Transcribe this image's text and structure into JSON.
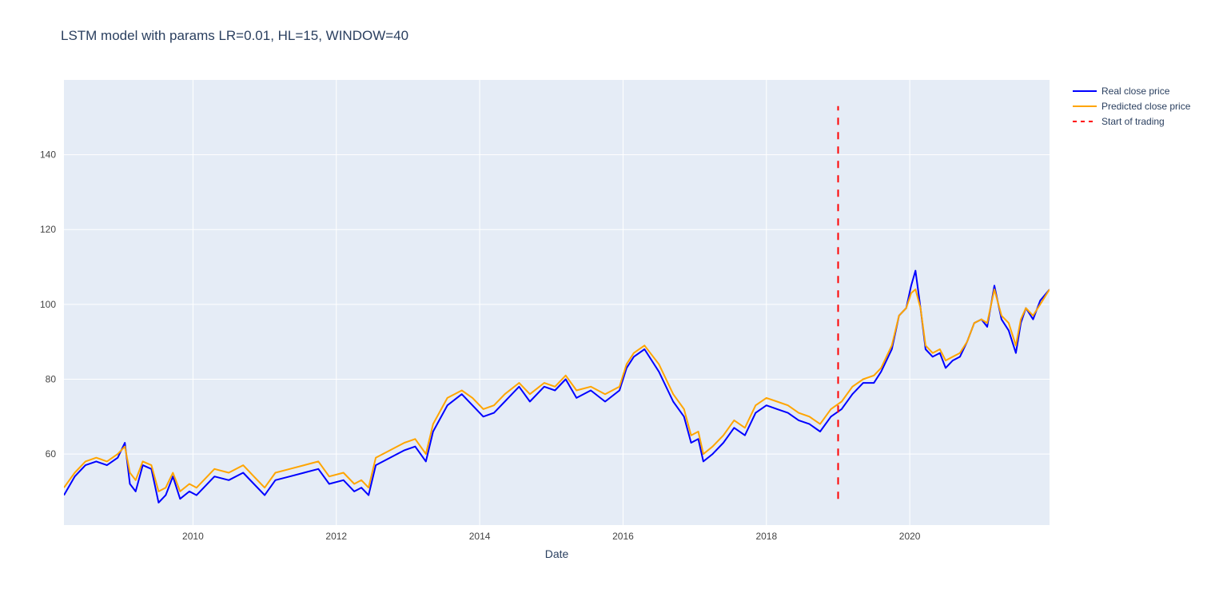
{
  "chart_data": {
    "type": "line",
    "title": "LSTM model with params LR=0.01, HL=15, WINDOW=40",
    "xlabel": "Date",
    "ylabel": "",
    "xlim": [
      2008.2,
      2021.95
    ],
    "ylim": [
      41,
      160
    ],
    "x_ticks": [
      2010,
      2012,
      2014,
      2016,
      2018,
      2020
    ],
    "y_ticks": [
      60,
      80,
      100,
      120,
      140
    ],
    "grid": true,
    "legend_position": "top-right",
    "series": [
      {
        "name": "Real close price",
        "color": "#0000ff",
        "points": [
          [
            2008.2,
            49
          ],
          [
            2008.35,
            54
          ],
          [
            2008.5,
            57
          ],
          [
            2008.65,
            58
          ],
          [
            2008.8,
            57
          ],
          [
            2008.95,
            59
          ],
          [
            2009.05,
            63
          ],
          [
            2009.12,
            52
          ],
          [
            2009.2,
            50
          ],
          [
            2009.3,
            57
          ],
          [
            2009.42,
            56
          ],
          [
            2009.52,
            47
          ],
          [
            2009.62,
            49
          ],
          [
            2009.72,
            54
          ],
          [
            2009.82,
            48
          ],
          [
            2009.95,
            50
          ],
          [
            2010.05,
            49
          ],
          [
            2010.15,
            51
          ],
          [
            2010.3,
            54
          ],
          [
            2010.5,
            53
          ],
          [
            2010.7,
            55
          ],
          [
            2010.85,
            52
          ],
          [
            2011.0,
            49
          ],
          [
            2011.15,
            53
          ],
          [
            2011.35,
            54
          ],
          [
            2011.55,
            55
          ],
          [
            2011.75,
            56
          ],
          [
            2011.9,
            52
          ],
          [
            2012.1,
            53
          ],
          [
            2012.25,
            50
          ],
          [
            2012.35,
            51
          ],
          [
            2012.45,
            49
          ],
          [
            2012.55,
            57
          ],
          [
            2012.75,
            59
          ],
          [
            2012.95,
            61
          ],
          [
            2013.1,
            62
          ],
          [
            2013.25,
            58
          ],
          [
            2013.35,
            66
          ],
          [
            2013.55,
            73
          ],
          [
            2013.75,
            76
          ],
          [
            2013.9,
            73
          ],
          [
            2014.05,
            70
          ],
          [
            2014.2,
            71
          ],
          [
            2014.35,
            74
          ],
          [
            2014.55,
            78
          ],
          [
            2014.7,
            74
          ],
          [
            2014.9,
            78
          ],
          [
            2015.05,
            77
          ],
          [
            2015.2,
            80
          ],
          [
            2015.35,
            75
          ],
          [
            2015.55,
            77
          ],
          [
            2015.75,
            74
          ],
          [
            2015.95,
            77
          ],
          [
            2016.05,
            83
          ],
          [
            2016.15,
            86
          ],
          [
            2016.3,
            88
          ],
          [
            2016.5,
            82
          ],
          [
            2016.7,
            74
          ],
          [
            2016.85,
            70
          ],
          [
            2016.95,
            63
          ],
          [
            2017.05,
            64
          ],
          [
            2017.12,
            58
          ],
          [
            2017.25,
            60
          ],
          [
            2017.4,
            63
          ],
          [
            2017.55,
            67
          ],
          [
            2017.7,
            65
          ],
          [
            2017.85,
            71
          ],
          [
            2018.0,
            73
          ],
          [
            2018.15,
            72
          ],
          [
            2018.3,
            71
          ],
          [
            2018.45,
            69
          ],
          [
            2018.6,
            68
          ],
          [
            2018.75,
            66
          ],
          [
            2018.9,
            70
          ],
          [
            2019.05,
            72
          ],
          [
            2019.2,
            76
          ],
          [
            2019.35,
            79
          ],
          [
            2019.5,
            79
          ],
          [
            2019.6,
            82
          ],
          [
            2019.75,
            88
          ],
          [
            2019.85,
            97
          ],
          [
            2019.95,
            99
          ],
          [
            2020.02,
            105
          ],
          [
            2020.08,
            109
          ],
          [
            2020.15,
            99
          ],
          [
            2020.22,
            88
          ],
          [
            2020.32,
            86
          ],
          [
            2020.42,
            87
          ],
          [
            2020.5,
            83
          ],
          [
            2020.6,
            85
          ],
          [
            2020.7,
            86
          ],
          [
            2020.8,
            90
          ],
          [
            2020.9,
            95
          ],
          [
            2021.0,
            96
          ],
          [
            2021.08,
            94
          ],
          [
            2021.18,
            105
          ],
          [
            2021.28,
            96
          ],
          [
            2021.38,
            93
          ],
          [
            2021.48,
            87
          ],
          [
            2021.55,
            95
          ],
          [
            2021.62,
            99
          ],
          [
            2021.72,
            96
          ],
          [
            2021.82,
            101
          ],
          [
            2021.95,
            104
          ]
        ]
      },
      {
        "name": "Predicted close price",
        "color": "#ffa500",
        "points": [
          [
            2008.2,
            51
          ],
          [
            2008.35,
            55
          ],
          [
            2008.5,
            58
          ],
          [
            2008.65,
            59
          ],
          [
            2008.8,
            58
          ],
          [
            2008.95,
            60
          ],
          [
            2009.05,
            62
          ],
          [
            2009.12,
            55
          ],
          [
            2009.2,
            53
          ],
          [
            2009.3,
            58
          ],
          [
            2009.42,
            57
          ],
          [
            2009.52,
            50
          ],
          [
            2009.62,
            51
          ],
          [
            2009.72,
            55
          ],
          [
            2009.82,
            50
          ],
          [
            2009.95,
            52
          ],
          [
            2010.05,
            51
          ],
          [
            2010.15,
            53
          ],
          [
            2010.3,
            56
          ],
          [
            2010.5,
            55
          ],
          [
            2010.7,
            57
          ],
          [
            2010.85,
            54
          ],
          [
            2011.0,
            51
          ],
          [
            2011.15,
            55
          ],
          [
            2011.35,
            56
          ],
          [
            2011.55,
            57
          ],
          [
            2011.75,
            58
          ],
          [
            2011.9,
            54
          ],
          [
            2012.1,
            55
          ],
          [
            2012.25,
            52
          ],
          [
            2012.35,
            53
          ],
          [
            2012.45,
            51
          ],
          [
            2012.55,
            59
          ],
          [
            2012.75,
            61
          ],
          [
            2012.95,
            63
          ],
          [
            2013.1,
            64
          ],
          [
            2013.25,
            60
          ],
          [
            2013.35,
            68
          ],
          [
            2013.55,
            75
          ],
          [
            2013.75,
            77
          ],
          [
            2013.9,
            75
          ],
          [
            2014.05,
            72
          ],
          [
            2014.2,
            73
          ],
          [
            2014.35,
            76
          ],
          [
            2014.55,
            79
          ],
          [
            2014.7,
            76
          ],
          [
            2014.9,
            79
          ],
          [
            2015.05,
            78
          ],
          [
            2015.2,
            81
          ],
          [
            2015.35,
            77
          ],
          [
            2015.55,
            78
          ],
          [
            2015.75,
            76
          ],
          [
            2015.95,
            78
          ],
          [
            2016.05,
            84
          ],
          [
            2016.15,
            87
          ],
          [
            2016.3,
            89
          ],
          [
            2016.5,
            84
          ],
          [
            2016.7,
            76
          ],
          [
            2016.85,
            72
          ],
          [
            2016.95,
            65
          ],
          [
            2017.05,
            66
          ],
          [
            2017.12,
            60
          ],
          [
            2017.25,
            62
          ],
          [
            2017.4,
            65
          ],
          [
            2017.55,
            69
          ],
          [
            2017.7,
            67
          ],
          [
            2017.85,
            73
          ],
          [
            2018.0,
            75
          ],
          [
            2018.15,
            74
          ],
          [
            2018.3,
            73
          ],
          [
            2018.45,
            71
          ],
          [
            2018.6,
            70
          ],
          [
            2018.75,
            68
          ],
          [
            2018.9,
            72
          ],
          [
            2019.05,
            74
          ],
          [
            2019.2,
            78
          ],
          [
            2019.35,
            80
          ],
          [
            2019.5,
            81
          ],
          [
            2019.6,
            83
          ],
          [
            2019.75,
            89
          ],
          [
            2019.85,
            97
          ],
          [
            2019.95,
            99
          ],
          [
            2020.02,
            103
          ],
          [
            2020.08,
            104
          ],
          [
            2020.15,
            99
          ],
          [
            2020.22,
            89
          ],
          [
            2020.32,
            87
          ],
          [
            2020.42,
            88
          ],
          [
            2020.5,
            85
          ],
          [
            2020.6,
            86
          ],
          [
            2020.7,
            87
          ],
          [
            2020.8,
            90
          ],
          [
            2020.9,
            95
          ],
          [
            2021.0,
            96
          ],
          [
            2021.08,
            95
          ],
          [
            2021.18,
            104
          ],
          [
            2021.28,
            97
          ],
          [
            2021.38,
            95
          ],
          [
            2021.48,
            89
          ],
          [
            2021.55,
            96
          ],
          [
            2021.62,
            99
          ],
          [
            2021.72,
            97
          ],
          [
            2021.82,
            100
          ],
          [
            2021.95,
            104
          ]
        ]
      },
      {
        "name": "Start of trading",
        "color": "#ff0000",
        "dash": "dashed",
        "points": [
          [
            2019.0,
            48
          ],
          [
            2019.0,
            153
          ]
        ]
      }
    ]
  }
}
